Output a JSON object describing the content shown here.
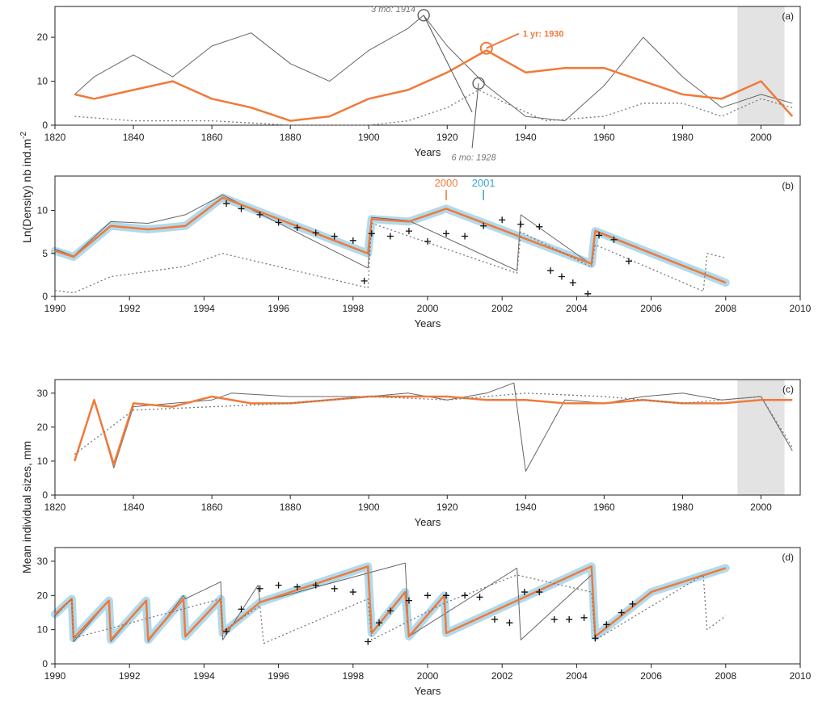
{
  "figure": {
    "ylabel_density": "Ln(Density) nb ind.m",
    "ylabel_density_exp": "-2",
    "ylabel_size": "Mean individual sizes, mm"
  },
  "colors": {
    "model_1yr": "#f07a3a",
    "model_3mo": "#666666",
    "model_6mo": "#777777",
    "envelope": "#a9d6ea",
    "observed": "#111111",
    "shade": "#e3e3e3",
    "label_2001": "#3aa4d4"
  },
  "chart_data": [
    {
      "panel": "(a)",
      "type": "line",
      "xlabel": "Years",
      "xlim": [
        1820,
        2010
      ],
      "ylim": [
        0,
        27
      ],
      "xticks": [
        1820,
        1840,
        1860,
        1880,
        1900,
        1920,
        1940,
        1960,
        1980,
        2000
      ],
      "yticks": [
        0,
        10,
        20
      ],
      "shaded_x": [
        1994,
        2006
      ],
      "series": [
        {
          "name": "3 mo",
          "style": "thin-gray",
          "x": [
            1825,
            1830,
            1840,
            1850,
            1860,
            1870,
            1880,
            1890,
            1900,
            1910,
            1914,
            1920,
            1930,
            1940,
            1950,
            1960,
            1970,
            1980,
            1990,
            2000,
            2008
          ],
          "y": [
            7,
            11,
            16,
            11,
            18,
            21,
            14,
            10,
            17,
            22,
            25,
            18,
            9,
            2,
            1,
            9,
            20,
            11,
            4,
            7,
            5
          ]
        },
        {
          "name": "1 yr",
          "style": "thick-orange",
          "x": [
            1825,
            1830,
            1840,
            1850,
            1860,
            1870,
            1880,
            1890,
            1900,
            1910,
            1920,
            1930,
            1940,
            1950,
            1960,
            1970,
            1980,
            1990,
            2000,
            2008
          ],
          "y": [
            7,
            6,
            8,
            10,
            6,
            4,
            1,
            2,
            6,
            8,
            12,
            17,
            12,
            13,
            13,
            10,
            7,
            6,
            10,
            2
          ]
        },
        {
          "name": "6 mo",
          "style": "dotted-gray",
          "x": [
            1825,
            1840,
            1860,
            1880,
            1900,
            1910,
            1920,
            1928,
            1935,
            1945,
            1960,
            1970,
            1980,
            1990,
            2000,
            2008
          ],
          "y": [
            2,
            1,
            1,
            0,
            0,
            1,
            4,
            8,
            5,
            1,
            2,
            5,
            5,
            2,
            6,
            4
          ]
        }
      ],
      "annotations": [
        {
          "text": "3 mo: 1914",
          "x": 1914,
          "y": 25
        },
        {
          "text": "1 yr: 1930",
          "x": 1930,
          "y": 17.5
        },
        {
          "text": "6 mo: 1928",
          "x": 1928,
          "y": 9.5
        }
      ]
    },
    {
      "panel": "(b)",
      "type": "line",
      "xlabel": "Years",
      "xlim": [
        1990,
        2010
      ],
      "ylim": [
        0,
        14
      ],
      "xticks": [
        1990,
        1992,
        1994,
        1996,
        1998,
        2000,
        2002,
        2004,
        2006,
        2008,
        2010
      ],
      "yticks": [
        0,
        5,
        10
      ],
      "year_markers": [
        {
          "label": "2000",
          "x": 2000.5
        },
        {
          "label": "2001",
          "x": 2001.5
        }
      ],
      "series": [
        {
          "name": "3 mo",
          "style": "thin-gray",
          "x": [
            1990,
            1990.5,
            1991.5,
            1992.5,
            1993.5,
            1994.5,
            1998.4,
            1998.5,
            1999.5,
            2002.4,
            2002.5,
            2004.4,
            2004.5,
            2008
          ],
          "y": [
            5.5,
            4.7,
            8.7,
            8.5,
            9.5,
            11.8,
            3.3,
            9.2,
            8.8,
            3.0,
            9.5,
            3.7,
            7.7,
            1.6
          ]
        },
        {
          "name": "1 yr",
          "style": "thick-orange",
          "x": [
            1990,
            1990.5,
            1991.5,
            1992.5,
            1993.5,
            1994.5,
            1998.4,
            1998.5,
            1999.5,
            2000.5,
            2004.4,
            2004.5,
            2008
          ],
          "y": [
            5.3,
            4.6,
            8.2,
            7.8,
            8.2,
            11.5,
            5.0,
            9.0,
            8.7,
            10.2,
            3.8,
            7.6,
            1.6
          ]
        },
        {
          "name": "6 mo",
          "style": "dotted-gray",
          "x": [
            1990,
            1990.5,
            1991.5,
            1992.5,
            1993.5,
            1994.5,
            1998.4,
            1998.5,
            2002.4,
            2002.5,
            2004.4,
            2004.5,
            2007.4,
            2007.5,
            2008
          ],
          "y": [
            0.7,
            0.4,
            2.3,
            2.9,
            3.5,
            5.0,
            1.0,
            8.5,
            2.7,
            7.5,
            3.4,
            6.0,
            0.6,
            5.0,
            4.5
          ]
        }
      ],
      "observed": {
        "name": "observed",
        "x": [
          1994.6,
          1995.0,
          1995.5,
          1996.0,
          1996.5,
          1997.0,
          1997.5,
          1998.0,
          1998.3,
          1998.5,
          1999.0,
          1999.5,
          2000.0,
          2000.5,
          2001.0,
          2001.5,
          2002.0,
          2002.5,
          2003.0,
          2003.3,
          2003.6,
          2003.9,
          2004.3,
          2004.6,
          2005.0,
          2005.4
        ],
        "y": [
          10.8,
          10.2,
          9.5,
          8.6,
          8.0,
          7.4,
          7.0,
          6.5,
          1.8,
          7.3,
          7.0,
          7.6,
          6.4,
          7.3,
          7.0,
          8.2,
          8.9,
          8.4,
          8.1,
          3.0,
          2.3,
          1.6,
          0.3,
          7.1,
          6.6,
          4.1
        ]
      }
    },
    {
      "panel": "(c)",
      "type": "line",
      "xlabel": "Years",
      "xlim": [
        1820,
        2010
      ],
      "ylim": [
        0,
        34
      ],
      "xticks": [
        1820,
        1840,
        1860,
        1880,
        1900,
        1920,
        1940,
        1960,
        1980,
        2000
      ],
      "yticks": [
        0,
        10,
        20,
        30
      ],
      "shaded_x": [
        1994,
        2006
      ],
      "series": [
        {
          "name": "3 mo",
          "style": "thin-gray",
          "x": [
            1825,
            1830,
            1835,
            1840,
            1850,
            1860,
            1865,
            1880,
            1890,
            1900,
            1910,
            1920,
            1930,
            1937,
            1940,
            1950,
            1960,
            1970,
            1980,
            1990,
            2000,
            2008
          ],
          "y": [
            10,
            28,
            8,
            26,
            27,
            28,
            30,
            29,
            29,
            29,
            30,
            28,
            30,
            33,
            7,
            28,
            27,
            29,
            30,
            28,
            29,
            13
          ]
        },
        {
          "name": "1 yr",
          "style": "thick-orange",
          "x": [
            1825,
            1830,
            1835,
            1840,
            1850,
            1860,
            1870,
            1880,
            1890,
            1900,
            1910,
            1920,
            1930,
            1940,
            1950,
            1960,
            1970,
            1980,
            1990,
            2000,
            2008
          ],
          "y": [
            10,
            28,
            9,
            27,
            26,
            29,
            27,
            27,
            28,
            29,
            29,
            29,
            28,
            28,
            27,
            27,
            28,
            27,
            27,
            28,
            28
          ]
        },
        {
          "name": "6 mo",
          "style": "dotted-gray",
          "x": [
            1825,
            1840,
            1860,
            1880,
            1900,
            1920,
            1940,
            1960,
            1980,
            2000,
            2008
          ],
          "y": [
            12,
            25,
            26,
            27,
            29,
            28,
            30,
            29,
            27,
            29,
            14
          ]
        }
      ]
    },
    {
      "panel": "(d)",
      "type": "line",
      "xlabel": "Years",
      "xlim": [
        1990,
        2010
      ],
      "ylim": [
        0,
        34
      ],
      "xticks": [
        1990,
        1992,
        1994,
        1996,
        1998,
        2000,
        2002,
        2004,
        2006,
        2008,
        2010
      ],
      "yticks": [
        0,
        10,
        20,
        30
      ],
      "series": [
        {
          "name": "3 mo",
          "style": "thin-gray",
          "x": [
            1990,
            1990.45,
            1990.5,
            1991.45,
            1991.5,
            1992.45,
            1992.5,
            1993.45,
            1993.5,
            1994.45,
            1994.5,
            1995.45,
            1995.5,
            1999.4,
            1999.5,
            2002.4,
            2002.5,
            2004.4,
            2004.5
          ],
          "y": [
            14,
            19,
            6.5,
            18.5,
            6.5,
            18.5,
            6.5,
            20,
            19,
            24,
            7,
            23,
            18,
            29.5,
            8,
            28,
            7,
            26,
            6.5
          ]
        },
        {
          "name": "1 yr",
          "style": "thick-orange",
          "x": [
            1990,
            1990.45,
            1990.5,
            1991.45,
            1991.5,
            1992.45,
            1992.5,
            1993.45,
            1993.5,
            1994.45,
            1994.5,
            1995.5,
            1998.4,
            1998.5,
            1999.4,
            1999.5,
            2000.45,
            2000.5,
            2004.4,
            2004.5,
            2006,
            2008
          ],
          "y": [
            14.5,
            19,
            7.5,
            18.5,
            7,
            18.5,
            7,
            19,
            8,
            19,
            9,
            18,
            28.5,
            9,
            21,
            8,
            20,
            9,
            28.5,
            8,
            21,
            28
          ]
        },
        {
          "name": "6 mo",
          "style": "dotted-gray",
          "x": [
            1990,
            1990.45,
            1990.5,
            1994.45,
            1994.5,
            1995.5,
            1995.6,
            1998.4,
            1998.5,
            2000.5,
            2002.4,
            2004.4,
            2004.5,
            2007.4,
            2007.5,
            2008
          ],
          "y": [
            14,
            19,
            7.5,
            19,
            9.5,
            17,
            6,
            19,
            7,
            18,
            26,
            21,
            7,
            26,
            10,
            14
          ]
        }
      ],
      "observed": {
        "name": "observed",
        "x": [
          1994.6,
          1995.0,
          1995.5,
          1996.0,
          1996.5,
          1997.0,
          1997.5,
          1998.0,
          1998.4,
          1998.7,
          1999.0,
          1999.5,
          2000.0,
          2000.5,
          2001.0,
          2001.4,
          2001.8,
          2002.2,
          2002.6,
          2003.0,
          2003.4,
          2003.8,
          2004.2,
          2004.5,
          2004.8,
          2005.2,
          2005.5
        ],
        "y": [
          9.5,
          16.0,
          22.0,
          23.0,
          22.5,
          23.0,
          22.0,
          21.0,
          6.5,
          12.0,
          15.5,
          18.5,
          20.0,
          20.0,
          20.0,
          19.5,
          13.0,
          12.0,
          21.0,
          21.0,
          13.0,
          13.0,
          13.5,
          7.5,
          11.5,
          15.0,
          17.5
        ]
      }
    }
  ]
}
